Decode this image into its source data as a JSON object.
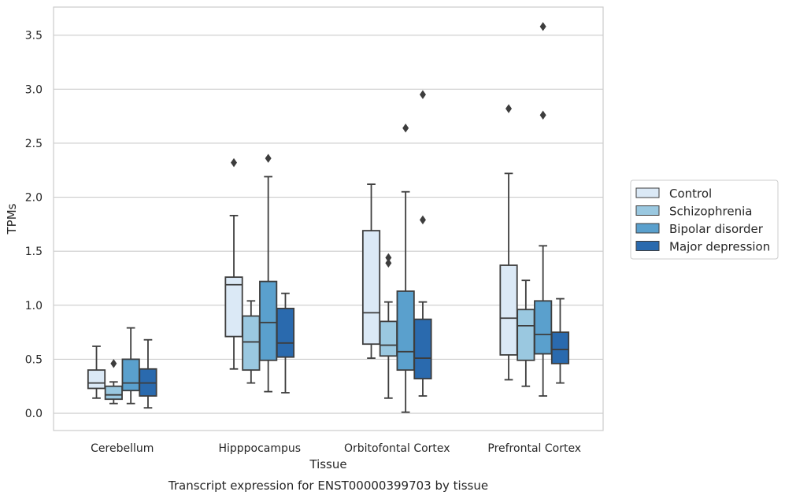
{
  "chart_data": {
    "type": "boxplot",
    "xlabel": "Tissue",
    "ylabel": "TPMs",
    "caption": "Transcript expression for ENST00000399703 by tissue",
    "ylim": [
      -0.16,
      3.76
    ],
    "yticks": [
      0.0,
      0.5,
      1.0,
      1.5,
      2.0,
      2.5,
      3.0,
      3.5
    ],
    "ytick_labels": [
      "0.0",
      "0.5",
      "1.0",
      "1.5",
      "2.0",
      "2.5",
      "3.0",
      "3.5"
    ],
    "grid": "horizontal",
    "legend_position": "right",
    "categories": [
      "Cerebellum",
      "Hipppocampus",
      "Orbitofontal Cortex",
      "Prefrontal Cortex"
    ],
    "series": [
      {
        "name": "Control",
        "color": "#dbe9f6",
        "boxes": [
          {
            "whislo": 0.14,
            "q1": 0.23,
            "med": 0.28,
            "q3": 0.4,
            "whishi": 0.62,
            "fliers": []
          },
          {
            "whislo": 0.41,
            "q1": 0.71,
            "med": 1.19,
            "q3": 1.26,
            "whishi": 1.83,
            "fliers": [
              2.32
            ]
          },
          {
            "whislo": 0.51,
            "q1": 0.64,
            "med": 0.93,
            "q3": 1.69,
            "whishi": 2.12,
            "fliers": []
          },
          {
            "whislo": 0.31,
            "q1": 0.54,
            "med": 0.88,
            "q3": 1.37,
            "whishi": 2.22,
            "fliers": [
              2.82
            ]
          }
        ]
      },
      {
        "name": "Schizophrenia",
        "color": "#9ac8e0",
        "boxes": [
          {
            "whislo": 0.09,
            "q1": 0.13,
            "med": 0.17,
            "q3": 0.25,
            "whishi": 0.29,
            "fliers": [
              0.46
            ]
          },
          {
            "whislo": 0.28,
            "q1": 0.4,
            "med": 0.66,
            "q3": 0.9,
            "whishi": 1.04,
            "fliers": []
          },
          {
            "whislo": 0.14,
            "q1": 0.53,
            "med": 0.63,
            "q3": 0.85,
            "whishi": 1.03,
            "fliers": [
              1.39,
              1.44
            ]
          },
          {
            "whislo": 0.25,
            "q1": 0.49,
            "med": 0.81,
            "q3": 0.96,
            "whishi": 1.23,
            "fliers": []
          }
        ]
      },
      {
        "name": "Bipolar disorder",
        "color": "#5aa0cd",
        "boxes": [
          {
            "whislo": 0.09,
            "q1": 0.21,
            "med": 0.28,
            "q3": 0.5,
            "whishi": 0.79,
            "fliers": []
          },
          {
            "whislo": 0.2,
            "q1": 0.49,
            "med": 0.84,
            "q3": 1.22,
            "whishi": 2.19,
            "fliers": [
              2.36
            ]
          },
          {
            "whislo": 0.01,
            "q1": 0.4,
            "med": 0.57,
            "q3": 1.13,
            "whishi": 2.05,
            "fliers": [
              2.64
            ]
          },
          {
            "whislo": 0.16,
            "q1": 0.55,
            "med": 0.73,
            "q3": 1.04,
            "whishi": 1.55,
            "fliers": [
              2.76,
              3.58
            ]
          }
        ]
      },
      {
        "name": "Major depression",
        "color": "#2a6aae",
        "boxes": [
          {
            "whislo": 0.05,
            "q1": 0.16,
            "med": 0.28,
            "q3": 0.41,
            "whishi": 0.68,
            "fliers": []
          },
          {
            "whislo": 0.19,
            "q1": 0.52,
            "med": 0.65,
            "q3": 0.97,
            "whishi": 1.11,
            "fliers": []
          },
          {
            "whislo": 0.16,
            "q1": 0.32,
            "med": 0.51,
            "q3": 0.87,
            "whishi": 1.03,
            "fliers": [
              1.79,
              2.95
            ]
          },
          {
            "whislo": 0.28,
            "q1": 0.46,
            "med": 0.59,
            "q3": 0.75,
            "whishi": 1.06,
            "fliers": []
          }
        ]
      }
    ]
  }
}
